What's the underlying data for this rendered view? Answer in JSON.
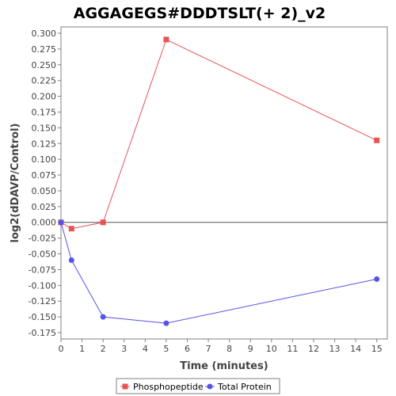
{
  "chart_data": {
    "type": "line",
    "title": "AGGAGEGS#DDDTSLT(+ 2)_v2",
    "xlabel": "Time (minutes)",
    "ylabel": "log2(dDAVP/Control)",
    "xlim": [
      0,
      15.5
    ],
    "ylim": [
      -0.185,
      0.31
    ],
    "x_ticks": [
      0,
      1,
      2,
      3,
      4,
      5,
      6,
      7,
      8,
      9,
      10,
      11,
      12,
      13,
      14,
      15
    ],
    "y_ticks": [
      -0.175,
      -0.15,
      -0.125,
      -0.1,
      -0.075,
      -0.05,
      -0.025,
      0.0,
      0.025,
      0.05,
      0.075,
      0.1,
      0.125,
      0.15,
      0.175,
      0.2,
      0.225,
      0.25,
      0.275,
      0.3
    ],
    "zero_line": true,
    "grid": false,
    "legend_position": "bottom",
    "series": [
      {
        "name": "Phosphopeptide",
        "color": "#e85454",
        "marker": "square",
        "x": [
          0,
          0.5,
          2,
          5,
          15
        ],
        "values": [
          0.0,
          -0.01,
          0.0,
          0.29,
          0.13
        ]
      },
      {
        "name": "Total Protein",
        "color": "#5454e8",
        "marker": "circle",
        "x": [
          0,
          0.5,
          2,
          5,
          15
        ],
        "values": [
          0.0,
          -0.06,
          -0.15,
          -0.16,
          -0.09
        ]
      }
    ]
  }
}
